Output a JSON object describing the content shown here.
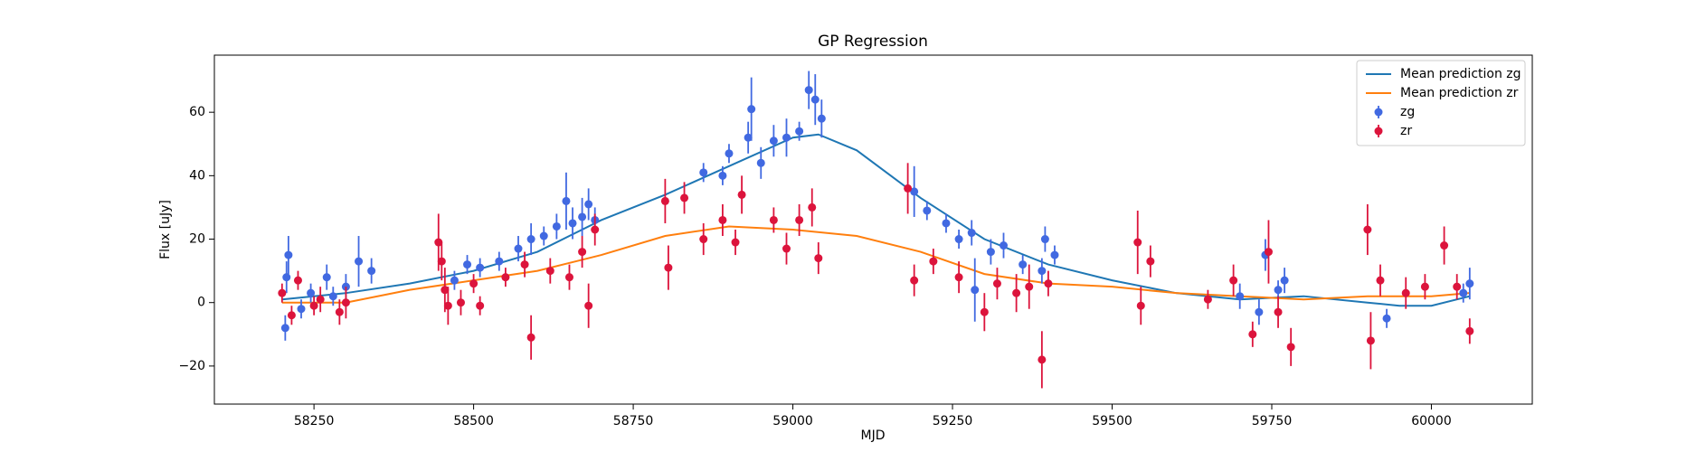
{
  "chart_data": {
    "type": "line",
    "title": "GP Regression",
    "xlabel": "MJD",
    "ylabel": "Flux [uJy]",
    "xlim": [
      58094,
      60158
    ],
    "ylim": [
      -32,
      78
    ],
    "xticks": [
      58250,
      58500,
      58750,
      59000,
      59250,
      59500,
      59750,
      60000
    ],
    "yticks": [
      {
        "value": -20,
        "label": "−20"
      },
      0,
      20,
      40,
      60
    ],
    "legend": "upper right",
    "series": [
      {
        "name": "Mean prediction zg",
        "type": "line",
        "color": "#1f77b4",
        "x": [
          58200,
          58300,
          58400,
          58500,
          58600,
          58700,
          58800,
          58900,
          59000,
          59040,
          59100,
          59200,
          59300,
          59400,
          59500,
          59600,
          59700,
          59800,
          59900,
          59950,
          60000,
          60060
        ],
        "values": [
          1,
          3,
          6,
          10,
          16,
          26,
          34,
          43,
          52,
          53,
          48,
          33,
          20,
          12,
          7,
          3,
          1,
          2,
          0,
          -1,
          -1,
          2
        ]
      },
      {
        "name": "Mean prediction zr",
        "type": "line",
        "color": "#ff7f0e",
        "x": [
          58200,
          58300,
          58400,
          58500,
          58600,
          58700,
          58800,
          58900,
          59000,
          59100,
          59200,
          59300,
          59400,
          59500,
          59600,
          59700,
          59800,
          59900,
          59950,
          60000,
          60060
        ],
        "values": [
          0,
          0,
          4,
          7,
          10,
          15,
          21,
          24,
          23,
          21,
          16,
          9,
          6,
          5,
          3,
          2,
          1,
          2,
          2,
          2,
          3
        ]
      },
      {
        "name": "zg",
        "type": "errorbar",
        "color": "#4169e1",
        "x": [
          58205,
          58207,
          58210,
          58230,
          58245,
          58270,
          58280,
          58300,
          58320,
          58340,
          58470,
          58490,
          58510,
          58540,
          58570,
          58590,
          58610,
          58630,
          58645,
          58655,
          58670,
          58680,
          58690,
          58860,
          58890,
          58900,
          58930,
          58935,
          58950,
          58970,
          58990,
          59010,
          59025,
          59035,
          59045,
          59190,
          59210,
          59240,
          59260,
          59280,
          59285,
          59310,
          59330,
          59360,
          59390,
          59395,
          59410,
          59700,
          59730,
          59740,
          59760,
          59770,
          59930,
          60050,
          60060
        ],
        "values": [
          -8,
          8,
          15,
          -2,
          3,
          8,
          2,
          5,
          13,
          10,
          7,
          12,
          11,
          13,
          17,
          20,
          21,
          24,
          32,
          25,
          27,
          31,
          26,
          41,
          40,
          47,
          52,
          61,
          44,
          51,
          52,
          54,
          67,
          64,
          58,
          35,
          29,
          25,
          20,
          22,
          4,
          16,
          18,
          12,
          10,
          20,
          15,
          2,
          -3,
          15,
          4,
          7,
          -5,
          3,
          6
        ],
        "errors": [
          4,
          5,
          6,
          3,
          3,
          4,
          3,
          4,
          8,
          4,
          3,
          3,
          3,
          3,
          4,
          5,
          3,
          4,
          9,
          5,
          6,
          5,
          4,
          3,
          3,
          3,
          5,
          10,
          5,
          5,
          6,
          3,
          6,
          8,
          6,
          8,
          3,
          3,
          3,
          4,
          10,
          4,
          4,
          3,
          4,
          4,
          3,
          4,
          4,
          5,
          3,
          4,
          3,
          3,
          5
        ]
      },
      {
        "name": "zr",
        "type": "errorbar",
        "color": "#dc143c",
        "x": [
          58200,
          58215,
          58225,
          58250,
          58260,
          58290,
          58300,
          58445,
          58450,
          58455,
          58460,
          58480,
          58500,
          58510,
          58550,
          58580,
          58590,
          58620,
          58650,
          58670,
          58680,
          58690,
          58800,
          58805,
          58830,
          58860,
          58890,
          58910,
          58920,
          58970,
          58990,
          59010,
          59030,
          59040,
          59180,
          59190,
          59220,
          59260,
          59300,
          59320,
          59350,
          59370,
          59390,
          59400,
          59540,
          59545,
          59560,
          59650,
          59690,
          59720,
          59745,
          59760,
          59780,
          59900,
          59905,
          59920,
          59960,
          59990,
          60020,
          60040,
          60060
        ],
        "values": [
          3,
          -4,
          7,
          -1,
          1,
          -3,
          0,
          19,
          13,
          4,
          -1,
          0,
          6,
          -1,
          8,
          12,
          -11,
          10,
          8,
          16,
          -1,
          23,
          32,
          11,
          33,
          20,
          26,
          19,
          34,
          26,
          17,
          26,
          30,
          14,
          36,
          7,
          13,
          8,
          -3,
          6,
          3,
          5,
          -18,
          6,
          19,
          -1,
          13,
          1,
          7,
          -10,
          16,
          -3,
          -14,
          23,
          -12,
          7,
          3,
          5,
          18,
          5,
          -9
        ],
        "errors": [
          3,
          3,
          3,
          3,
          4,
          4,
          5,
          9,
          6,
          7,
          6,
          4,
          3,
          3,
          3,
          4,
          7,
          4,
          4,
          5,
          7,
          5,
          7,
          7,
          5,
          5,
          5,
          4,
          6,
          4,
          5,
          5,
          6,
          5,
          8,
          5,
          4,
          5,
          6,
          5,
          6,
          7,
          9,
          4,
          10,
          6,
          5,
          3,
          5,
          4,
          10,
          5,
          6,
          8,
          9,
          5,
          5,
          4,
          6,
          4,
          4
        ]
      }
    ]
  }
}
